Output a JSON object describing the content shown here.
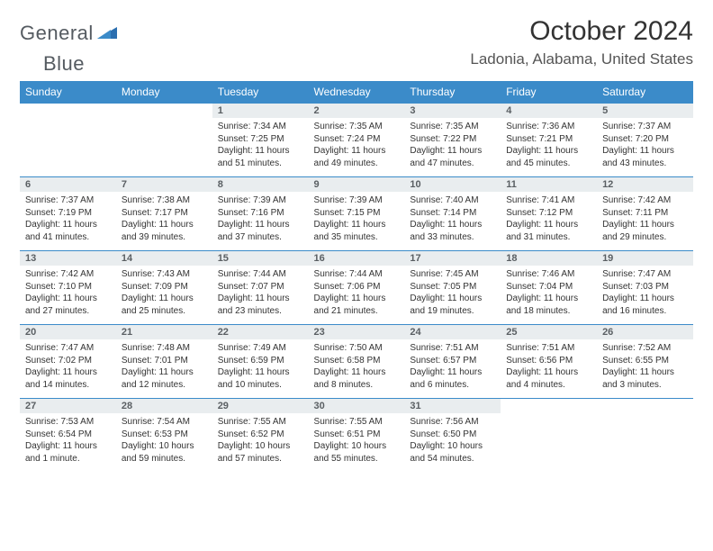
{
  "brand": {
    "name_part1": "General",
    "name_part2": "Blue",
    "accent_color": "#3b8bc9"
  },
  "title": "October 2024",
  "location": "Ladonia, Alabama, United States",
  "weekdays": [
    "Sunday",
    "Monday",
    "Tuesday",
    "Wednesday",
    "Thursday",
    "Friday",
    "Saturday"
  ],
  "style": {
    "header_bg": "#3b8bc9",
    "header_fg": "#ffffff",
    "daynum_bg": "#e9edef",
    "daynum_fg": "#5a5f63",
    "text_color": "#333333",
    "row_border": "#3b8bc9",
    "title_fontsize": 30,
    "location_fontsize": 17,
    "weekday_fontsize": 12,
    "daynum_fontsize": 11,
    "data_fontsize": 10
  },
  "weeks": [
    [
      {
        "empty": true
      },
      {
        "empty": true
      },
      {
        "day": "1",
        "sunrise": "Sunrise: 7:34 AM",
        "sunset": "Sunset: 7:25 PM",
        "daylight": "Daylight: 11 hours and 51 minutes."
      },
      {
        "day": "2",
        "sunrise": "Sunrise: 7:35 AM",
        "sunset": "Sunset: 7:24 PM",
        "daylight": "Daylight: 11 hours and 49 minutes."
      },
      {
        "day": "3",
        "sunrise": "Sunrise: 7:35 AM",
        "sunset": "Sunset: 7:22 PM",
        "daylight": "Daylight: 11 hours and 47 minutes."
      },
      {
        "day": "4",
        "sunrise": "Sunrise: 7:36 AM",
        "sunset": "Sunset: 7:21 PM",
        "daylight": "Daylight: 11 hours and 45 minutes."
      },
      {
        "day": "5",
        "sunrise": "Sunrise: 7:37 AM",
        "sunset": "Sunset: 7:20 PM",
        "daylight": "Daylight: 11 hours and 43 minutes."
      }
    ],
    [
      {
        "day": "6",
        "sunrise": "Sunrise: 7:37 AM",
        "sunset": "Sunset: 7:19 PM",
        "daylight": "Daylight: 11 hours and 41 minutes."
      },
      {
        "day": "7",
        "sunrise": "Sunrise: 7:38 AM",
        "sunset": "Sunset: 7:17 PM",
        "daylight": "Daylight: 11 hours and 39 minutes."
      },
      {
        "day": "8",
        "sunrise": "Sunrise: 7:39 AM",
        "sunset": "Sunset: 7:16 PM",
        "daylight": "Daylight: 11 hours and 37 minutes."
      },
      {
        "day": "9",
        "sunrise": "Sunrise: 7:39 AM",
        "sunset": "Sunset: 7:15 PM",
        "daylight": "Daylight: 11 hours and 35 minutes."
      },
      {
        "day": "10",
        "sunrise": "Sunrise: 7:40 AM",
        "sunset": "Sunset: 7:14 PM",
        "daylight": "Daylight: 11 hours and 33 minutes."
      },
      {
        "day": "11",
        "sunrise": "Sunrise: 7:41 AM",
        "sunset": "Sunset: 7:12 PM",
        "daylight": "Daylight: 11 hours and 31 minutes."
      },
      {
        "day": "12",
        "sunrise": "Sunrise: 7:42 AM",
        "sunset": "Sunset: 7:11 PM",
        "daylight": "Daylight: 11 hours and 29 minutes."
      }
    ],
    [
      {
        "day": "13",
        "sunrise": "Sunrise: 7:42 AM",
        "sunset": "Sunset: 7:10 PM",
        "daylight": "Daylight: 11 hours and 27 minutes."
      },
      {
        "day": "14",
        "sunrise": "Sunrise: 7:43 AM",
        "sunset": "Sunset: 7:09 PM",
        "daylight": "Daylight: 11 hours and 25 minutes."
      },
      {
        "day": "15",
        "sunrise": "Sunrise: 7:44 AM",
        "sunset": "Sunset: 7:07 PM",
        "daylight": "Daylight: 11 hours and 23 minutes."
      },
      {
        "day": "16",
        "sunrise": "Sunrise: 7:44 AM",
        "sunset": "Sunset: 7:06 PM",
        "daylight": "Daylight: 11 hours and 21 minutes."
      },
      {
        "day": "17",
        "sunrise": "Sunrise: 7:45 AM",
        "sunset": "Sunset: 7:05 PM",
        "daylight": "Daylight: 11 hours and 19 minutes."
      },
      {
        "day": "18",
        "sunrise": "Sunrise: 7:46 AM",
        "sunset": "Sunset: 7:04 PM",
        "daylight": "Daylight: 11 hours and 18 minutes."
      },
      {
        "day": "19",
        "sunrise": "Sunrise: 7:47 AM",
        "sunset": "Sunset: 7:03 PM",
        "daylight": "Daylight: 11 hours and 16 minutes."
      }
    ],
    [
      {
        "day": "20",
        "sunrise": "Sunrise: 7:47 AM",
        "sunset": "Sunset: 7:02 PM",
        "daylight": "Daylight: 11 hours and 14 minutes."
      },
      {
        "day": "21",
        "sunrise": "Sunrise: 7:48 AM",
        "sunset": "Sunset: 7:01 PM",
        "daylight": "Daylight: 11 hours and 12 minutes."
      },
      {
        "day": "22",
        "sunrise": "Sunrise: 7:49 AM",
        "sunset": "Sunset: 6:59 PM",
        "daylight": "Daylight: 11 hours and 10 minutes."
      },
      {
        "day": "23",
        "sunrise": "Sunrise: 7:50 AM",
        "sunset": "Sunset: 6:58 PM",
        "daylight": "Daylight: 11 hours and 8 minutes."
      },
      {
        "day": "24",
        "sunrise": "Sunrise: 7:51 AM",
        "sunset": "Sunset: 6:57 PM",
        "daylight": "Daylight: 11 hours and 6 minutes."
      },
      {
        "day": "25",
        "sunrise": "Sunrise: 7:51 AM",
        "sunset": "Sunset: 6:56 PM",
        "daylight": "Daylight: 11 hours and 4 minutes."
      },
      {
        "day": "26",
        "sunrise": "Sunrise: 7:52 AM",
        "sunset": "Sunset: 6:55 PM",
        "daylight": "Daylight: 11 hours and 3 minutes."
      }
    ],
    [
      {
        "day": "27",
        "sunrise": "Sunrise: 7:53 AM",
        "sunset": "Sunset: 6:54 PM",
        "daylight": "Daylight: 11 hours and 1 minute."
      },
      {
        "day": "28",
        "sunrise": "Sunrise: 7:54 AM",
        "sunset": "Sunset: 6:53 PM",
        "daylight": "Daylight: 10 hours and 59 minutes."
      },
      {
        "day": "29",
        "sunrise": "Sunrise: 7:55 AM",
        "sunset": "Sunset: 6:52 PM",
        "daylight": "Daylight: 10 hours and 57 minutes."
      },
      {
        "day": "30",
        "sunrise": "Sunrise: 7:55 AM",
        "sunset": "Sunset: 6:51 PM",
        "daylight": "Daylight: 10 hours and 55 minutes."
      },
      {
        "day": "31",
        "sunrise": "Sunrise: 7:56 AM",
        "sunset": "Sunset: 6:50 PM",
        "daylight": "Daylight: 10 hours and 54 minutes."
      },
      {
        "empty": true
      },
      {
        "empty": true
      }
    ]
  ]
}
